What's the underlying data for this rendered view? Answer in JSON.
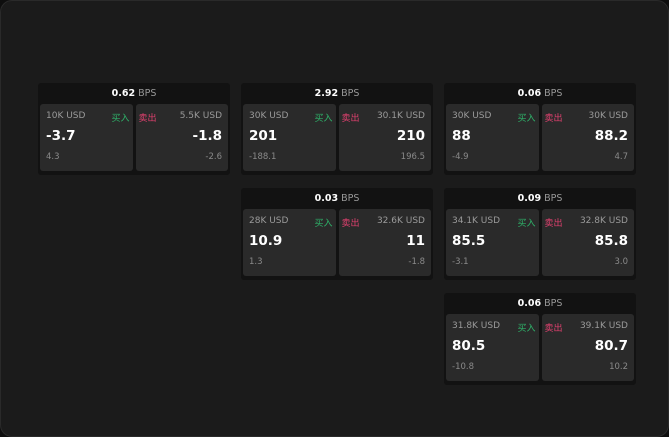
{
  "colors": {
    "buy": "#2fb36a",
    "sell": "#e0406f",
    "background": "#1b1b1b"
  },
  "buy_label": "买入",
  "sell_label": "卖出",
  "unit": "BPS",
  "cards": [
    {
      "spread": "0.62",
      "bid": {
        "qty": "10K USD",
        "price": "-3.7",
        "change": "4.3"
      },
      "ask": {
        "qty": "5.5K USD",
        "price": "-1.8",
        "change": "-2.6"
      }
    },
    {
      "spread": "2.92",
      "bid": {
        "qty": "30K USD",
        "price": "201",
        "change": "-188.1"
      },
      "ask": {
        "qty": "30.1K USD",
        "price": "210",
        "change": "196.5"
      }
    },
    {
      "spread": "0.06",
      "bid": {
        "qty": "30K USD",
        "price": "88",
        "change": "-4.9"
      },
      "ask": {
        "qty": "30K USD",
        "price": "88.2",
        "change": "4.7"
      }
    },
    {
      "spread": "0.03",
      "bid": {
        "qty": "28K USD",
        "price": "10.9",
        "change": "1.3"
      },
      "ask": {
        "qty": "32.6K USD",
        "price": "11",
        "change": "-1.8"
      }
    },
    {
      "spread": "0.09",
      "bid": {
        "qty": "34.1K USD",
        "price": "85.5",
        "change": "-3.1"
      },
      "ask": {
        "qty": "32.8K USD",
        "price": "85.8",
        "change": "3.0"
      }
    },
    {
      "spread": "0.06",
      "bid": {
        "qty": "31.8K USD",
        "price": "80.5",
        "change": "-10.8"
      },
      "ask": {
        "qty": "39.1K USD",
        "price": "80.7",
        "change": "10.2"
      }
    }
  ]
}
